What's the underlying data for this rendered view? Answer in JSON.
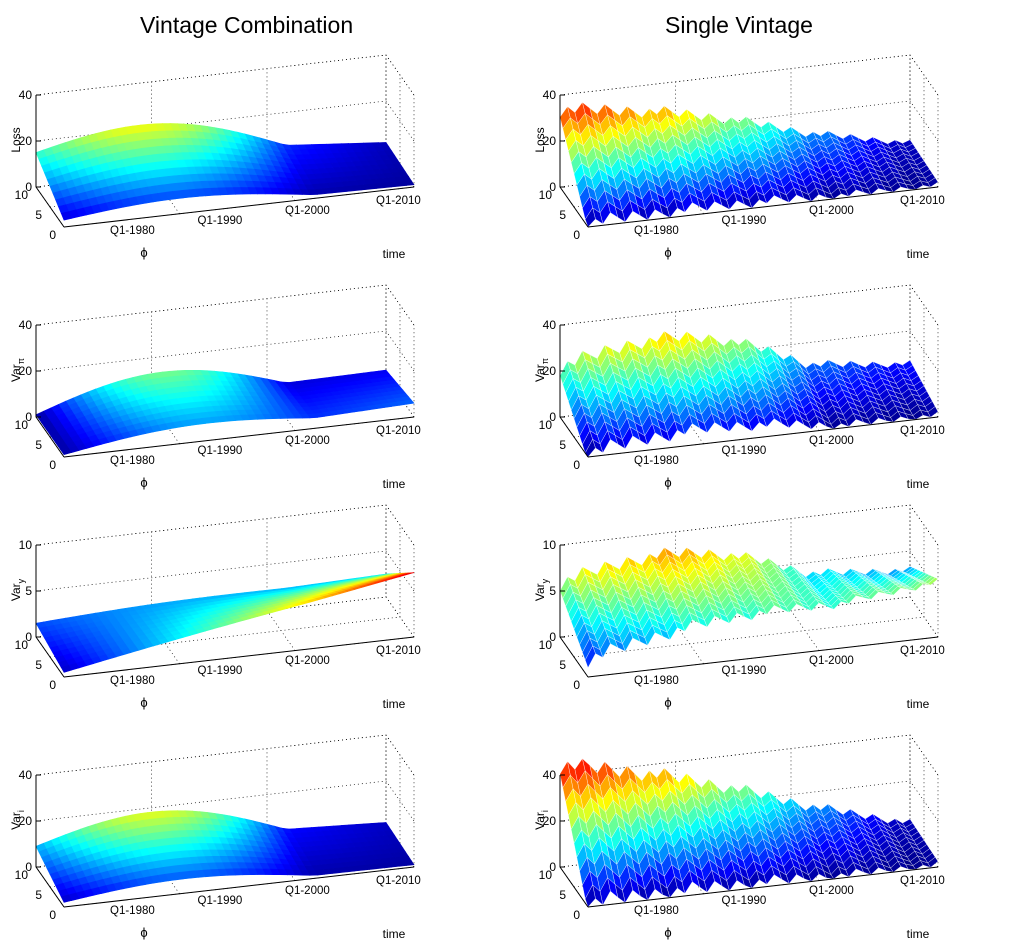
{
  "figure": {
    "column_titles": [
      "Vintage Combination",
      "Single Vintage"
    ]
  },
  "chart_data": [
    {
      "type": "surface",
      "column": 0,
      "row": 0,
      "surface_kind": "smooth",
      "ylabel_base": "Loss",
      "ylabel_sub": "",
      "zlim": [
        0,
        40
      ],
      "zticks": [
        0,
        20,
        40
      ],
      "phi_ticks": [
        0,
        5,
        10
      ],
      "time_ticks": [
        "Q1-1980",
        "Q1-1990",
        "Q1-2000",
        "Q1-2010"
      ],
      "xlabel": "ϕ",
      "time_label": "time",
      "grid": true,
      "corner_values": {
        "phi0_start": 3,
        "phi0_end": 1,
        "phi10_start": 15,
        "phi10_end": 2
      },
      "peak_value": 35
    },
    {
      "type": "surface",
      "column": 1,
      "row": 0,
      "surface_kind": "ridged",
      "ylabel_base": "Loss",
      "ylabel_sub": "",
      "zlim": [
        0,
        40
      ],
      "zticks": [
        0,
        20,
        40
      ],
      "phi_ticks": [
        0,
        5,
        10
      ],
      "time_ticks": [
        "Q1-1980",
        "Q1-1990",
        "Q1-2000",
        "Q1-2010"
      ],
      "xlabel": "ϕ",
      "time_label": "time",
      "grid": true,
      "corner_values": {
        "phi0_start": 2,
        "phi0_end": 1,
        "phi10_start": 34,
        "phi10_end": 2
      },
      "peak_value": 40
    },
    {
      "type": "surface",
      "column": 0,
      "row": 1,
      "surface_kind": "smooth",
      "ylabel_base": "Var",
      "ylabel_sub": "π",
      "zlim": [
        0,
        40
      ],
      "zticks": [
        0,
        20,
        40
      ],
      "phi_ticks": [
        0,
        5,
        10
      ],
      "time_ticks": [
        "Q1-1980",
        "Q1-1990",
        "Q1-2000",
        "Q1-2010"
      ],
      "xlabel": "ϕ",
      "time_label": "time",
      "grid": true,
      "corner_values": {
        "phi0_start": 1,
        "phi0_end": 6,
        "phi10_start": 1,
        "phi10_end": 3
      },
      "peak_value": 27
    },
    {
      "type": "surface",
      "column": 1,
      "row": 1,
      "surface_kind": "ridged",
      "ylabel_base": "Var",
      "ylabel_sub": "π",
      "zlim": [
        0,
        40
      ],
      "zticks": [
        0,
        20,
        40
      ],
      "phi_ticks": [
        0,
        5,
        10
      ],
      "time_ticks": [
        "Q1-1980",
        "Q1-1990",
        "Q1-2000",
        "Q1-2010"
      ],
      "xlabel": "ϕ",
      "time_label": "time",
      "grid": true,
      "corner_values": {
        "phi0_start": 2,
        "phi0_end": 1,
        "phi10_start": 22,
        "phi10_end": 6
      },
      "peak_value": 45
    },
    {
      "type": "surface",
      "column": 0,
      "row": 2,
      "surface_kind": "smooth",
      "ylabel_base": "Var",
      "ylabel_sub": "y",
      "zlim": [
        0,
        10
      ],
      "zticks": [
        0,
        5,
        10
      ],
      "phi_ticks": [
        0,
        5,
        10
      ],
      "time_ticks": [
        "Q1-1980",
        "Q1-1990",
        "Q1-2000",
        "Q1-2010"
      ],
      "xlabel": "ϕ",
      "time_label": "time",
      "grid": true,
      "corner_values": {
        "phi0_start": 0.5,
        "phi0_end": 7,
        "phi10_start": 1.5,
        "phi10_end": 2.5
      },
      "peak_value": 7.5
    },
    {
      "type": "surface",
      "column": 1,
      "row": 2,
      "surface_kind": "ridged",
      "ylabel_base": "Var",
      "ylabel_sub": "y",
      "zlim": [
        0,
        10
      ],
      "zticks": [
        0,
        5,
        10
      ],
      "phi_ticks": [
        0,
        5,
        10
      ],
      "time_ticks": [
        "Q1-1980",
        "Q1-1990",
        "Q1-2000",
        "Q1-2010"
      ],
      "xlabel": "ϕ",
      "time_label": "time",
      "grid": true,
      "corner_values": {
        "phi0_start": 2,
        "phi0_end": 6,
        "phi10_start": 6,
        "phi10_end": 3
      },
      "peak_value": 11
    },
    {
      "type": "surface",
      "column": 0,
      "row": 3,
      "surface_kind": "smooth",
      "ylabel_base": "Var",
      "ylabel_sub": "i",
      "zlim": [
        0,
        40
      ],
      "zticks": [
        0,
        20,
        40
      ],
      "phi_ticks": [
        0,
        5,
        10
      ],
      "time_ticks": [
        "Q1-1980",
        "Q1-1990",
        "Q1-2000",
        "Q1-2010"
      ],
      "xlabel": "ϕ",
      "time_label": "time",
      "grid": true,
      "corner_values": {
        "phi0_start": 2,
        "phi0_end": 1,
        "phi10_start": 9,
        "phi10_end": 2
      },
      "peak_value": 30
    },
    {
      "type": "surface",
      "column": 1,
      "row": 3,
      "surface_kind": "ridged",
      "ylabel_base": "Var",
      "ylabel_sub": "i",
      "zlim": [
        0,
        40
      ],
      "zticks": [
        0,
        20,
        40
      ],
      "phi_ticks": [
        0,
        5,
        10
      ],
      "time_ticks": [
        "Q1-1980",
        "Q1-1990",
        "Q1-2000",
        "Q1-2010"
      ],
      "xlabel": "ϕ",
      "time_label": "time",
      "grid": true,
      "corner_values": {
        "phi0_start": 2,
        "phi0_end": 1,
        "phi10_start": 45,
        "phi10_end": 2
      },
      "peak_value": 50
    }
  ]
}
